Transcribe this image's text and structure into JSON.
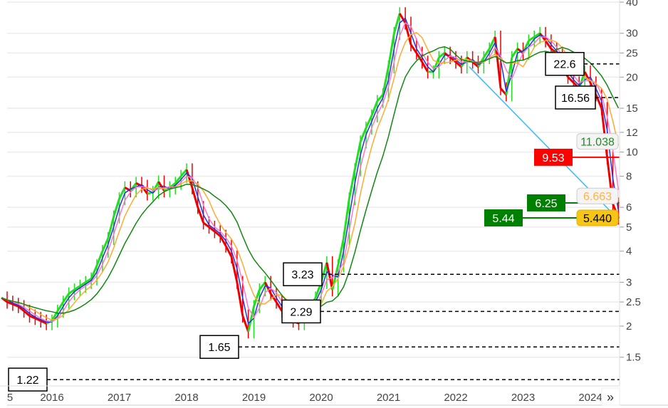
{
  "chart_data": {
    "type": "line",
    "title": "",
    "xlabel": "",
    "ylabel": "",
    "y_scale": "log",
    "ylim": [
      1.1,
      40
    ],
    "xlim": [
      2015.23,
      2024.43
    ],
    "grid": true,
    "y_ticks": [
      "40",
      "30",
      "25",
      "20",
      "15",
      "12",
      "10",
      "8",
      "6",
      "5",
      "4",
      "3",
      "2.5",
      "2",
      "1.5"
    ],
    "x_ticks": [
      "5",
      "2016",
      "2017",
      "2018",
      "2019",
      "2020",
      "2021",
      "2022",
      "2023",
      "2024"
    ],
    "price_monthly": {
      "start": "2015-04",
      "values": [
        2.6,
        2.5,
        2.45,
        2.4,
        2.3,
        2.2,
        2.15,
        2.1,
        2.05,
        2.1,
        2.3,
        2.5,
        2.7,
        2.8,
        2.9,
        3.0,
        3.1,
        3.5,
        4.0,
        4.5,
        5.5,
        6.5,
        7.2,
        7.0,
        7.5,
        7.3,
        6.8,
        6.9,
        7.6,
        7.0,
        7.2,
        7.5,
        8.0,
        8.5,
        7.2,
        6.0,
        5.2,
        5.0,
        4.8,
        4.6,
        4.2,
        3.8,
        3.0,
        2.2,
        1.9,
        2.4,
        2.8,
        3.0,
        2.7,
        2.5,
        2.3,
        2.2,
        2.1,
        2.05,
        2.2,
        2.4,
        2.6,
        3.0,
        3.6,
        2.8,
        3.5,
        4.5,
        6.5,
        8.5,
        11,
        12.5,
        14,
        16,
        17,
        22,
        30,
        36,
        33,
        27,
        25,
        23,
        21,
        21,
        24,
        25,
        24,
        23,
        22,
        24,
        23,
        22,
        24,
        26,
        29,
        18,
        17,
        24,
        26,
        25,
        28,
        29,
        30,
        28,
        26,
        25,
        22,
        20,
        19,
        18,
        21,
        19,
        17,
        15,
        9.5,
        6.2,
        5.44
      ]
    },
    "price_levels": [
      {
        "value": "22.6",
        "style": "dashed",
        "color": "#000000"
      },
      {
        "value": "16.56",
        "style": "dashed",
        "color": "#000000"
      },
      {
        "value": "9.53",
        "style": "solid",
        "color": "#ff0000"
      },
      {
        "value": "6.25",
        "style": "solid",
        "color": "#008000"
      },
      {
        "value": "5.44",
        "style": "solid",
        "color": "#008000"
      },
      {
        "value": "3.23",
        "style": "dashed",
        "color": "#000000"
      },
      {
        "value": "2.29",
        "style": "dashed",
        "color": "#000000"
      },
      {
        "value": "1.65",
        "style": "dashed",
        "color": "#000000"
      },
      {
        "value": "1.22",
        "style": "dashed",
        "color": "#000000"
      }
    ],
    "axis_badges": [
      {
        "value": "11.038",
        "color": "#228b22",
        "bg": "#f4f4f4"
      },
      {
        "value": "6.663",
        "color": "#ffb347",
        "bg": "#f4f4f4"
      },
      {
        "value": "5.440",
        "color": "#000000",
        "bg": "#f5c518"
      }
    ],
    "trendline": {
      "from": [
        2022.2,
        22
      ],
      "to": [
        2024.35,
        5.6
      ],
      "color": "#33bbff"
    },
    "ma_colors": [
      "#2233dd",
      "#ff77cc",
      "#ffaa33",
      "#118811"
    ],
    "up_color": "#22dd22",
    "down_color": "#ee0000"
  },
  "nav": {
    "more_label": "»"
  }
}
